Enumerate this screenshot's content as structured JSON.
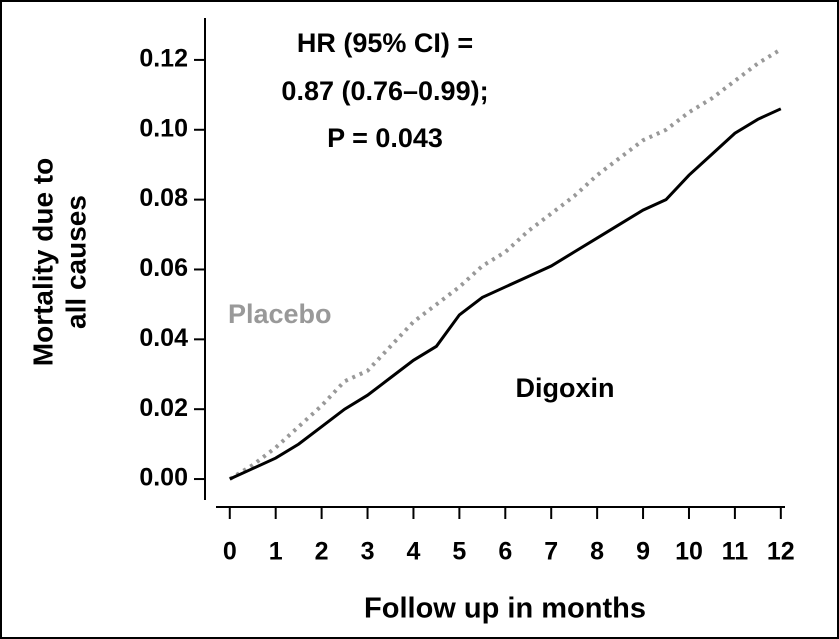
{
  "chart_data": {
    "type": "line",
    "ylabel": [
      "Mortality due to",
      "all causes"
    ],
    "xlabel": "Follow up in months",
    "annotations": [
      "HR (95% CI) =",
      "0.87 (0.76–0.99);",
      "P = 0.043"
    ],
    "x": [
      0,
      0.5,
      1,
      1.5,
      2,
      2.5,
      3,
      3.5,
      4,
      4.5,
      5,
      5.5,
      6,
      6.5,
      7,
      7.5,
      8,
      8.5,
      9,
      9.5,
      10,
      10.5,
      11,
      11.5,
      12
    ],
    "series": [
      {
        "name": "Placebo",
        "color": "#999999",
        "dash": true,
        "values": [
          0,
          0.004,
          0.009,
          0.015,
          0.021,
          0.028,
          0.031,
          0.038,
          0.045,
          0.05,
          0.055,
          0.061,
          0.065,
          0.071,
          0.076,
          0.081,
          0.087,
          0.092,
          0.097,
          0.1,
          0.105,
          0.109,
          0.114,
          0.119,
          0.123
        ]
      },
      {
        "name": "Digoxin",
        "color": "#000000",
        "dash": false,
        "values": [
          0,
          0.003,
          0.006,
          0.01,
          0.015,
          0.02,
          0.024,
          0.029,
          0.034,
          0.038,
          0.047,
          0.052,
          0.055,
          0.058,
          0.061,
          0.065,
          0.069,
          0.073,
          0.077,
          0.08,
          0.087,
          0.093,
          0.099,
          0.103,
          0.106
        ]
      }
    ],
    "xlim": [
      -0.3,
      12.2
    ],
    "ylim": [
      -0.006,
      0.132
    ],
    "xticks": [
      0,
      1,
      2,
      3,
      4,
      5,
      6,
      7,
      8,
      9,
      10,
      11,
      12
    ],
    "yticks": [
      {
        "value": 0,
        "label": "0.00"
      },
      {
        "value": 0.02,
        "label": "0.02"
      },
      {
        "value": 0.04,
        "label": "0.04"
      },
      {
        "value": 0.06,
        "label": "0.06"
      },
      {
        "value": 0.08,
        "label": "0.08"
      },
      {
        "value": 0.1,
        "label": "0.10"
      },
      {
        "value": 0.12,
        "label": "0.12"
      }
    ],
    "grid": false
  }
}
